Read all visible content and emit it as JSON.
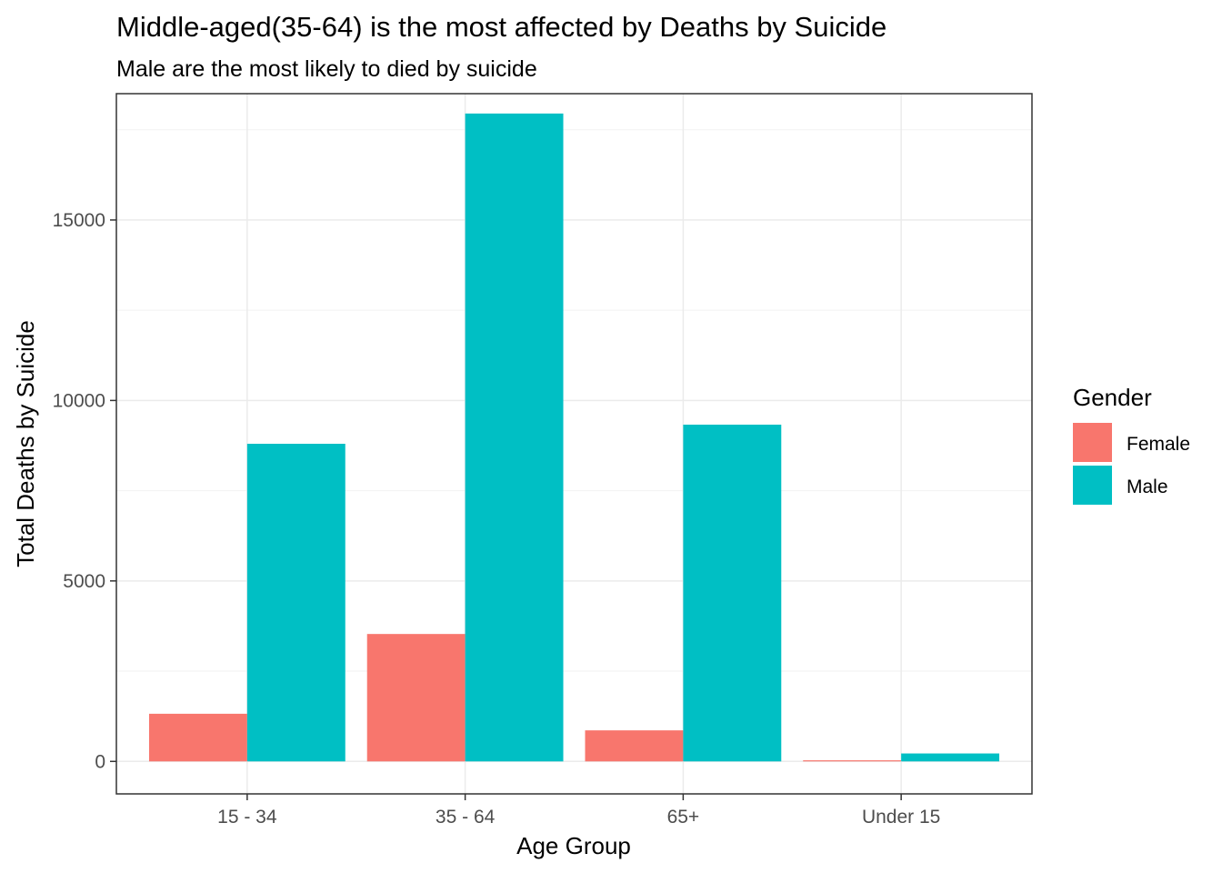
{
  "chart_data": {
    "type": "bar",
    "title": "Middle-aged(35-64) is the most affected by Deaths by Suicide",
    "subtitle": "Male are the most likely to died by suicide",
    "xlabel": "Age Group",
    "ylabel": "Total Deaths by Suicide",
    "categories": [
      "15 - 34",
      "35 - 64",
      "65+",
      "Under 15"
    ],
    "series": [
      {
        "name": "Female",
        "color": "#F8766D",
        "values": [
          1320,
          3530,
          860,
          30
        ]
      },
      {
        "name": "Male",
        "color": "#00BFC4",
        "values": [
          8800,
          17950,
          9330,
          220
        ]
      }
    ],
    "ylim": [
      -900,
      18500
    ],
    "yticks": [
      0,
      5000,
      10000,
      15000
    ],
    "ytick_labels": [
      "0",
      "5000",
      "10000",
      "15000"
    ],
    "grid": true,
    "legend": {
      "title": "Gender",
      "position": "right"
    }
  }
}
